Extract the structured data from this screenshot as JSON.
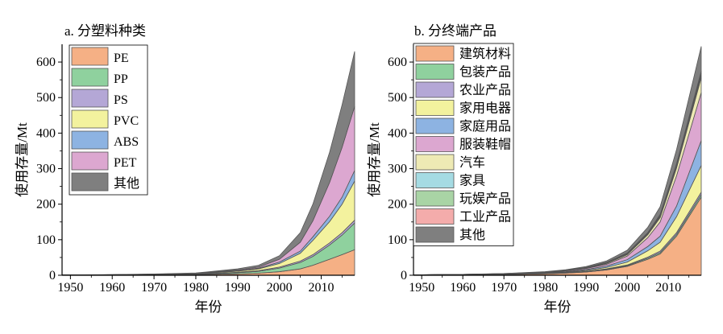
{
  "chart_data": [
    {
      "type": "area",
      "stacked": true,
      "title": "a. 分塑料种类",
      "xlabel": "年份",
      "ylabel": "使用存量/Mt",
      "xlim": [
        1948,
        2018
      ],
      "ylim": [
        0,
        650
      ],
      "x_ticks": [
        1950,
        1960,
        1970,
        1980,
        1990,
        2000,
        2010
      ],
      "y_ticks": [
        0,
        100,
        200,
        300,
        400,
        500,
        600
      ],
      "legend_position": "top-left",
      "x": [
        1948,
        1960,
        1970,
        1980,
        1985,
        1990,
        1995,
        2000,
        2005,
        2008,
        2012,
        2015,
        2018
      ],
      "series": [
        {
          "name": "PE",
          "color": "#f5b085",
          "values": [
            1,
            1,
            1.5,
            2,
            3,
            4,
            6,
            10,
            18,
            28,
            45,
            58,
            72
          ]
        },
        {
          "name": "PP",
          "color": "#8fd19e",
          "values": [
            0,
            0.2,
            0.5,
            1,
            2,
            3,
            5,
            10,
            18,
            25,
            40,
            55,
            75
          ]
        },
        {
          "name": "PS",
          "color": "#b4a7d6",
          "values": [
            0,
            0.1,
            0.3,
            0.5,
            1,
            1.5,
            2,
            3,
            4,
            5,
            6,
            7,
            8
          ]
        },
        {
          "name": "PVC",
          "color": "#f3f29e",
          "values": [
            0,
            0.2,
            0.5,
            1,
            2,
            3,
            5,
            10,
            22,
            40,
            60,
            80,
            110
          ]
        },
        {
          "name": "ABS",
          "color": "#8db3e2",
          "values": [
            0,
            0.1,
            0.2,
            0.5,
            1,
            1.5,
            2,
            4,
            6,
            10,
            15,
            20,
            30
          ]
        },
        {
          "name": "PET",
          "color": "#dca7d0",
          "values": [
            0,
            0,
            0.2,
            0.5,
            1,
            2,
            3,
            8,
            25,
            45,
            95,
            140,
            180
          ]
        },
        {
          "name": "其他",
          "color": "#7f7f7f",
          "values": [
            0,
            0.2,
            0.5,
            1,
            2,
            3,
            5,
            10,
            27,
            47,
            85,
            120,
            155
          ]
        }
      ]
    },
    {
      "type": "area",
      "stacked": true,
      "title": "b. 分终端产品",
      "xlabel": "年份",
      "ylabel": "使用存量/Mt",
      "xlim": [
        1948,
        2018
      ],
      "ylim": [
        0,
        650
      ],
      "x_ticks": [
        1950,
        1960,
        1970,
        1980,
        1990,
        2000,
        2010
      ],
      "y_ticks": [
        0,
        100,
        200,
        300,
        400,
        500,
        600
      ],
      "legend_position": "top-left",
      "x": [
        1948,
        1960,
        1970,
        1980,
        1985,
        1990,
        1995,
        2000,
        2005,
        2008,
        2012,
        2015,
        2018
      ],
      "series": [
        {
          "name": "建筑材料",
          "color": "#f5b085",
          "values": [
            1,
            1.5,
            2,
            4,
            6,
            9,
            15,
            25,
            45,
            60,
            110,
            165,
            220
          ]
        },
        {
          "name": "包装产品",
          "color": "#8fd19e",
          "values": [
            0,
            0.1,
            0.2,
            0.4,
            0.6,
            1,
            1.5,
            2,
            3,
            4,
            5,
            6,
            7
          ]
        },
        {
          "name": "农业产品",
          "color": "#b4a7d6",
          "values": [
            0,
            0.1,
            0.2,
            0.4,
            0.6,
            1,
            1.5,
            2,
            3,
            4,
            5,
            6,
            7
          ]
        },
        {
          "name": "家用电器",
          "color": "#f3f29e",
          "values": [
            0,
            0.2,
            0.5,
            1,
            1.5,
            2.5,
            4,
            8,
            18,
            25,
            45,
            60,
            75
          ]
        },
        {
          "name": "家庭用品",
          "color": "#8db3e2",
          "values": [
            0,
            0.2,
            0.5,
            1,
            1.5,
            2.5,
            4,
            7,
            12,
            17,
            30,
            50,
            70
          ]
        },
        {
          "name": "服装鞋帽",
          "color": "#dca7d0",
          "values": [
            0,
            0.2,
            0.5,
            1,
            2,
            3,
            5,
            10,
            25,
            40,
            85,
            110,
            135
          ]
        },
        {
          "name": "汽车",
          "color": "#eeeab4",
          "values": [
            0,
            0.1,
            0.3,
            0.8,
            1,
            1.5,
            2.5,
            4,
            8,
            12,
            22,
            32,
            42
          ]
        },
        {
          "name": "家具",
          "color": "#a5dbe3",
          "values": [
            0,
            0,
            0.1,
            0.2,
            0.3,
            0.5,
            1,
            1.5,
            2,
            3,
            4,
            5,
            6
          ]
        },
        {
          "name": "玩娱产品",
          "color": "#a9d4a5",
          "values": [
            0,
            0,
            0.1,
            0.2,
            0.3,
            0.5,
            1,
            1.5,
            2,
            3,
            4,
            5,
            6
          ]
        },
        {
          "name": "工业产品",
          "color": "#f4acab",
          "values": [
            0,
            0,
            0.1,
            0.2,
            0.3,
            0.5,
            1,
            1.5,
            2,
            3,
            4,
            5,
            6
          ]
        },
        {
          "name": "其他",
          "color": "#7f7f7f",
          "values": [
            0,
            0.2,
            0.5,
            1,
            1.5,
            2.5,
            4,
            8,
            15,
            22,
            40,
            55,
            70
          ]
        }
      ]
    }
  ]
}
